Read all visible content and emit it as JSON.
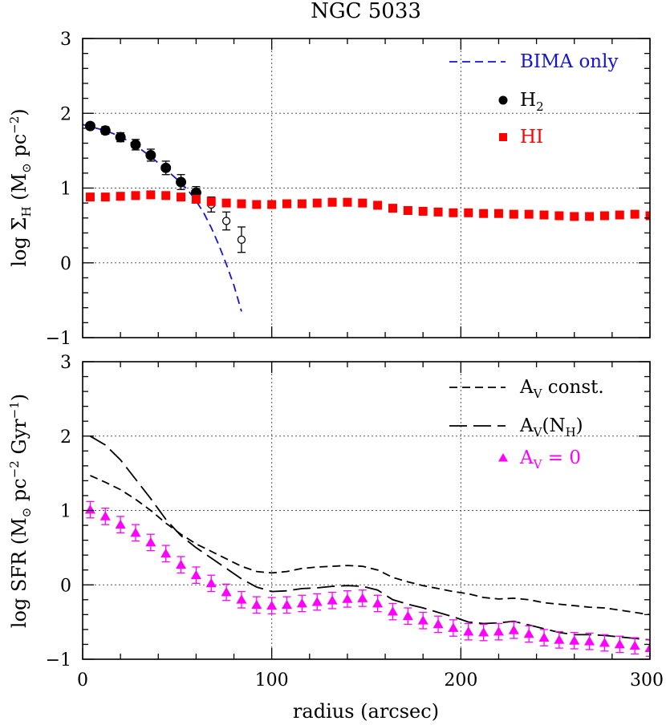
{
  "figure": {
    "title": "NGC 5033",
    "xlabel": "radius (arcsec)"
  },
  "chart_data": [
    {
      "type": "scatter",
      "ylabel": "log Σ_H (M_⊙ pc^-2)",
      "xlim": [
        0,
        300
      ],
      "ylim": [
        -1,
        3
      ],
      "x_ticks": [
        "0",
        "100",
        "200",
        "300"
      ],
      "y_ticks": [
        "−1",
        "0",
        "1",
        "2",
        "3"
      ],
      "grid": true,
      "legend_position": "top-right",
      "legend": [
        {
          "label": "BIMA only",
          "color": "#1414d2",
          "style": "short-dash"
        },
        {
          "label": "H",
          "sub": "2",
          "color": "#000000",
          "style": "filled-circle"
        },
        {
          "label": "HI",
          "color": "#ff0000",
          "style": "filled-square"
        }
      ],
      "series": [
        {
          "name": "BIMA only",
          "kind": "line",
          "color": "#1414d2",
          "dash": "10 6",
          "x": [
            0,
            4,
            12,
            20,
            28,
            36,
            44,
            52,
            56,
            60,
            64,
            68,
            72,
            76,
            80,
            84
          ],
          "y": [
            1.85,
            1.82,
            1.77,
            1.69,
            1.57,
            1.42,
            1.25,
            1.07,
            0.96,
            0.83,
            0.67,
            0.47,
            0.24,
            -0.02,
            -0.3,
            -0.65
          ]
        },
        {
          "name": "H2",
          "kind": "filled-circle",
          "color": "#000000",
          "x": [
            4,
            12,
            20,
            28,
            36,
            44,
            52,
            60
          ],
          "y": [
            1.83,
            1.77,
            1.68,
            1.58,
            1.44,
            1.27,
            1.08,
            0.94
          ],
          "err": [
            0.04,
            0.05,
            0.06,
            0.07,
            0.08,
            0.09,
            0.1,
            0.08
          ]
        },
        {
          "name": "H2 open",
          "kind": "open-circle",
          "color": "#000000",
          "x": [
            68,
            76,
            84
          ],
          "y": [
            0.78,
            0.56,
            0.31
          ],
          "err": [
            0.1,
            0.12,
            0.17
          ]
        },
        {
          "name": "HI",
          "kind": "filled-square",
          "color": "#ff0000",
          "x": [
            4,
            12,
            20,
            28,
            36,
            44,
            52,
            60,
            68,
            76,
            84,
            92,
            100,
            108,
            116,
            124,
            132,
            140,
            148,
            156,
            164,
            172,
            180,
            188,
            196,
            204,
            212,
            220,
            228,
            236,
            244,
            252,
            260,
            268,
            276,
            284,
            292,
            300
          ],
          "y": [
            0.88,
            0.88,
            0.89,
            0.9,
            0.91,
            0.9,
            0.88,
            0.85,
            0.82,
            0.8,
            0.79,
            0.78,
            0.78,
            0.79,
            0.79,
            0.8,
            0.81,
            0.81,
            0.8,
            0.77,
            0.73,
            0.7,
            0.69,
            0.68,
            0.67,
            0.67,
            0.66,
            0.66,
            0.65,
            0.65,
            0.64,
            0.63,
            0.62,
            0.62,
            0.63,
            0.64,
            0.65,
            0.63
          ],
          "err": 0.05
        }
      ]
    },
    {
      "type": "scatter",
      "ylabel": "log SFR (M_⊙ pc^-2 Gyr^-1)",
      "xlim": [
        0,
        300
      ],
      "ylim": [
        -1,
        3
      ],
      "x_ticks": [
        "0",
        "100",
        "200",
        "300"
      ],
      "y_ticks": [
        "−1",
        "0",
        "1",
        "2",
        "3"
      ],
      "grid": true,
      "legend_position": "top-right",
      "legend": [
        {
          "label": "A",
          "sub": "V",
          "rest": " const.",
          "color": "#000000",
          "style": "short-dash"
        },
        {
          "label": "A",
          "sub": "V",
          "rest": "(N",
          "sub2": "H",
          "rest2": ")",
          "color": "#000000",
          "style": "long-dash"
        },
        {
          "label": "A",
          "sub": "V",
          "rest": " = 0",
          "color": "#ff00ff",
          "style": "filled-triangle"
        }
      ],
      "series": [
        {
          "name": "AV const.",
          "kind": "line",
          "color": "#000000",
          "dash": "10 6",
          "x": [
            4,
            12,
            20,
            28,
            36,
            44,
            52,
            60,
            68,
            76,
            84,
            92,
            100,
            108,
            116,
            124,
            132,
            140,
            148,
            156,
            164,
            172,
            180,
            188,
            196,
            204,
            212,
            220,
            228,
            236,
            244,
            252,
            260,
            268,
            276,
            284,
            292,
            300
          ],
          "y": [
            1.47,
            1.38,
            1.28,
            1.15,
            1.0,
            0.83,
            0.68,
            0.55,
            0.45,
            0.35,
            0.25,
            0.18,
            0.16,
            0.18,
            0.22,
            0.24,
            0.25,
            0.26,
            0.25,
            0.2,
            0.1,
            0.04,
            -0.01,
            -0.05,
            -0.09,
            -0.12,
            -0.17,
            -0.19,
            -0.18,
            -0.2,
            -0.24,
            -0.26,
            -0.28,
            -0.3,
            -0.31,
            -0.34,
            -0.37,
            -0.4
          ]
        },
        {
          "name": "AV(NH)",
          "kind": "line",
          "color": "#000000",
          "dash": "22 8",
          "x": [
            4,
            12,
            20,
            28,
            36,
            44,
            52,
            60,
            68,
            76,
            84,
            92,
            100,
            108,
            116,
            124,
            132,
            140,
            148,
            156,
            164,
            172,
            180,
            188,
            196,
            204,
            212,
            220,
            228,
            236,
            244,
            252,
            260,
            268,
            276,
            284,
            292,
            300
          ],
          "y": [
            2.0,
            1.88,
            1.68,
            1.42,
            1.16,
            0.88,
            0.66,
            0.5,
            0.36,
            0.22,
            0.08,
            -0.03,
            -0.09,
            -0.08,
            -0.05,
            -0.04,
            -0.02,
            -0.01,
            -0.02,
            -0.07,
            -0.2,
            -0.26,
            -0.31,
            -0.37,
            -0.43,
            -0.5,
            -0.52,
            -0.51,
            -0.49,
            -0.54,
            -0.59,
            -0.64,
            -0.67,
            -0.67,
            -0.68,
            -0.7,
            -0.72,
            -0.74
          ]
        },
        {
          "name": "AV = 0",
          "kind": "filled-triangle",
          "color": "#ff00ff",
          "x": [
            4,
            12,
            20,
            28,
            36,
            44,
            52,
            60,
            68,
            76,
            84,
            92,
            100,
            108,
            116,
            124,
            132,
            140,
            148,
            156,
            164,
            172,
            180,
            188,
            196,
            204,
            212,
            220,
            228,
            236,
            244,
            252,
            260,
            268,
            276,
            284,
            292,
            300
          ],
          "y": [
            1.01,
            0.92,
            0.81,
            0.7,
            0.57,
            0.42,
            0.27,
            0.13,
            0.02,
            -0.1,
            -0.2,
            -0.27,
            -0.28,
            -0.27,
            -0.25,
            -0.23,
            -0.21,
            -0.19,
            -0.18,
            -0.25,
            -0.36,
            -0.42,
            -0.48,
            -0.53,
            -0.58,
            -0.63,
            -0.64,
            -0.63,
            -0.61,
            -0.66,
            -0.71,
            -0.74,
            -0.75,
            -0.76,
            -0.78,
            -0.8,
            -0.82,
            -0.85
          ],
          "err": 0.11
        }
      ]
    }
  ]
}
